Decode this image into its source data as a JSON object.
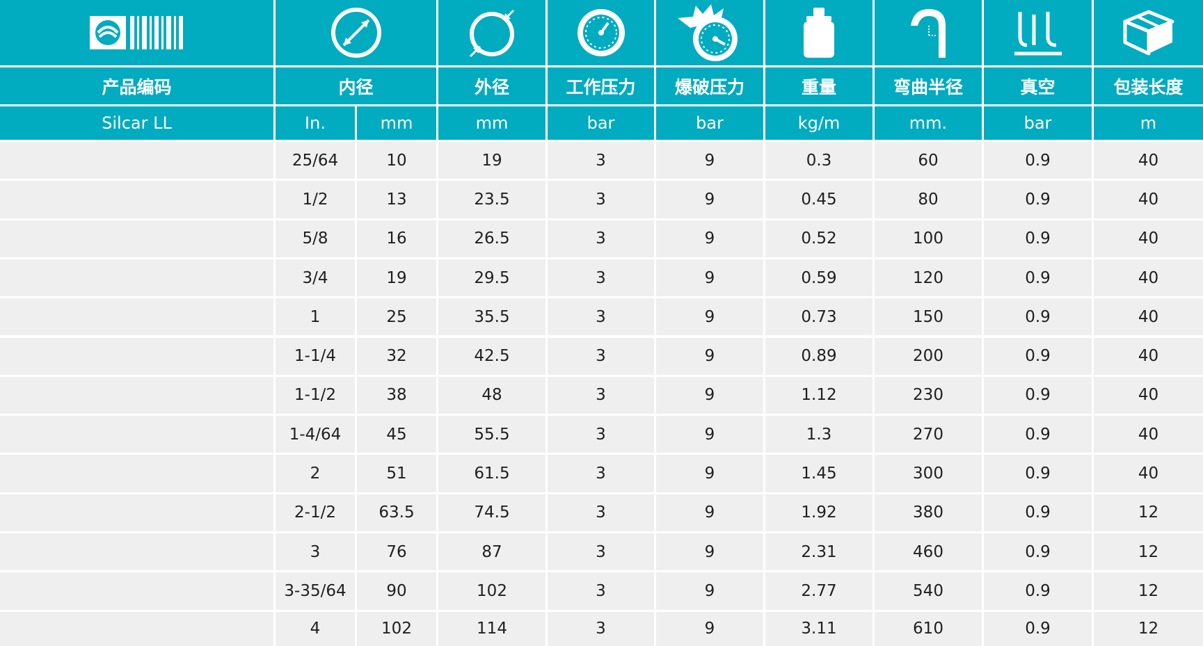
{
  "header": {
    "labels": [
      "产品编码",
      "内径",
      "外径",
      "工作压力",
      "爆破压力",
      "重量",
      "弯曲半径",
      "真空",
      "包装长度"
    ],
    "units": [
      "Silcar LL",
      "In.",
      "mm",
      "mm",
      "bar",
      "bar",
      "kg/m",
      "mm.",
      "bar",
      "m"
    ],
    "icons": [
      "barcode-logo-icon",
      "inner-diameter-icon",
      "outer-diameter-icon",
      "working-pressure-gauge-icon",
      "burst-pressure-gauge-icon",
      "weight-icon",
      "bend-radius-icon",
      "vacuum-icon",
      "package-box-icon"
    ]
  },
  "rows": [
    [
      "",
      "25/64",
      "10",
      "19",
      "3",
      "9",
      "0.3",
      "60",
      "0.9",
      "40"
    ],
    [
      "",
      "1/2",
      "13",
      "23.5",
      "3",
      "9",
      "0.45",
      "80",
      "0.9",
      "40"
    ],
    [
      "",
      "5/8",
      "16",
      "26.5",
      "3",
      "9",
      "0.52",
      "100",
      "0.9",
      "40"
    ],
    [
      "",
      "3/4",
      "19",
      "29.5",
      "3",
      "9",
      "0.59",
      "120",
      "0.9",
      "40"
    ],
    [
      "",
      "1",
      "25",
      "35.5",
      "3",
      "9",
      "0.73",
      "150",
      "0.9",
      "40"
    ],
    [
      "",
      "1-1/4",
      "32",
      "42.5",
      "3",
      "9",
      "0.89",
      "200",
      "0.9",
      "40"
    ],
    [
      "",
      "1-1/2",
      "38",
      "48",
      "3",
      "9",
      "1.12",
      "230",
      "0.9",
      "40"
    ],
    [
      "",
      "1-4/64",
      "45",
      "55.5",
      "3",
      "9",
      "1.3",
      "270",
      "0.9",
      "40"
    ],
    [
      "",
      "2",
      "51",
      "61.5",
      "3",
      "9",
      "1.45",
      "300",
      "0.9",
      "40"
    ],
    [
      "",
      "2-1/2",
      "63.5",
      "74.5",
      "3",
      "9",
      "1.92",
      "380",
      "0.9",
      "12"
    ],
    [
      "",
      "3",
      "76",
      "87",
      "3",
      "9",
      "2.31",
      "460",
      "0.9",
      "12"
    ],
    [
      "",
      "3-35/64",
      "90",
      "102",
      "3",
      "9",
      "2.77",
      "540",
      "0.9",
      "12"
    ],
    [
      "",
      "4",
      "102",
      "114",
      "3",
      "9",
      "3.11",
      "610",
      "0.9",
      "12"
    ]
  ],
  "colors": {
    "header": "#01abc0",
    "body": "#efefef",
    "grid": "#ffffff",
    "text": "#1f1f1f"
  }
}
